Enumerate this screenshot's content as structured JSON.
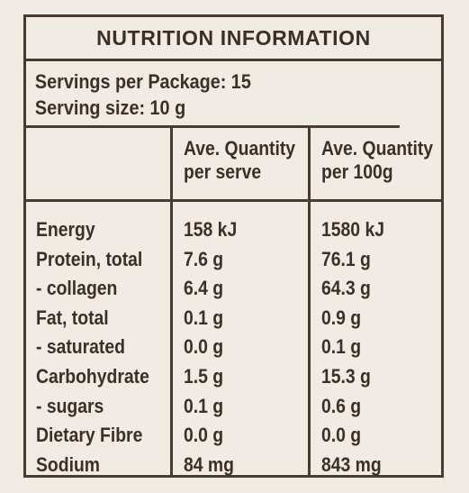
{
  "title": "NUTRITION INFORMATION",
  "servings_per_package": "Servings per Package: 15",
  "serving_size": "Serving size: 10 g",
  "headers": {
    "per_serve_line1": "Ave. Quantity",
    "per_serve_line2": "per serve",
    "per_100g_line1": "Ave. Quantity",
    "per_100g_line2": "per 100g"
  },
  "rows": [
    {
      "name": "Energy",
      "per_serve": "158 kJ",
      "per_100g": "1580 kJ"
    },
    {
      "name": "Protein, total",
      "per_serve": "7.6 g",
      "per_100g": "76.1 g"
    },
    {
      "name": "- collagen",
      "per_serve": "6.4 g",
      "per_100g": "64.3 g"
    },
    {
      "name": "Fat, total",
      "per_serve": "0.1 g",
      "per_100g": "0.9 g"
    },
    {
      "name": "- saturated",
      "per_serve": "0.0 g",
      "per_100g": "0.1 g"
    },
    {
      "name": "Carbohydrate",
      "per_serve": "1.5 g",
      "per_100g": "15.3 g"
    },
    {
      "name": "- sugars",
      "per_serve": "0.1 g",
      "per_100g": "0.6 g"
    },
    {
      "name": "Dietary Fibre",
      "per_serve": "0.0 g",
      "per_100g": "0.0 g"
    },
    {
      "name": "Sodium",
      "per_serve": "84 mg",
      "per_100g": "843 mg"
    }
  ],
  "colors": {
    "background": "#f1ebe3",
    "text": "#3d2f27",
    "border": "#4a3a30"
  }
}
